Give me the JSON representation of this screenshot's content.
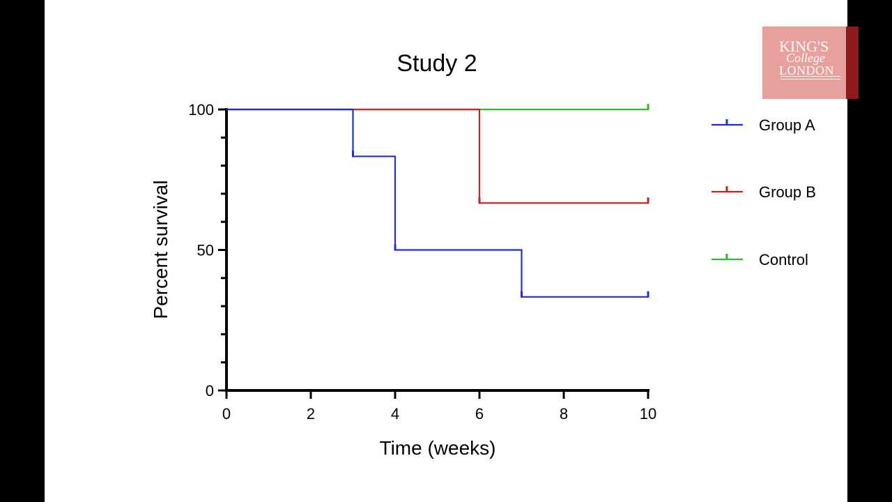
{
  "logo": {
    "line1": "KING'S",
    "line2": "College",
    "line3": "LONDON"
  },
  "colors": {
    "group_a": "#1f2fd6",
    "group_b": "#c8231c",
    "control": "#2db82d",
    "logo_bg": "#e8a09c",
    "logo_edge": "#8c1c1c"
  },
  "chart_data": {
    "type": "line",
    "title": "Study 2",
    "xlabel": "Time (weeks)",
    "ylabel": "Percent survival",
    "xlim": [
      0,
      10
    ],
    "ylim": [
      0,
      100
    ],
    "x_ticks": [
      0,
      2,
      4,
      6,
      8,
      10
    ],
    "y_ticks": [
      0,
      50,
      100
    ],
    "step": true,
    "legend_position": "right",
    "series": [
      {
        "name": "Group A",
        "color": "#1f2fd6",
        "points": [
          [
            0,
            100
          ],
          [
            3,
            100
          ],
          [
            3,
            83.3
          ],
          [
            4,
            83.3
          ],
          [
            4,
            50
          ],
          [
            7,
            50
          ],
          [
            7,
            33.3
          ],
          [
            10,
            33.3
          ]
        ],
        "censored": [
          [
            3,
            83.3
          ],
          [
            4,
            50
          ],
          [
            7,
            33.3
          ],
          [
            10,
            33.3
          ]
        ]
      },
      {
        "name": "Group B",
        "color": "#c8231c",
        "points": [
          [
            0,
            100
          ],
          [
            6,
            100
          ],
          [
            6,
            66.7
          ],
          [
            10,
            66.7
          ]
        ],
        "censored": [
          [
            6,
            66.7
          ],
          [
            10,
            66.7
          ]
        ]
      },
      {
        "name": "Control",
        "color": "#2db82d",
        "points": [
          [
            0,
            100
          ],
          [
            10,
            100
          ]
        ],
        "censored": [
          [
            10,
            100
          ]
        ]
      }
    ]
  }
}
